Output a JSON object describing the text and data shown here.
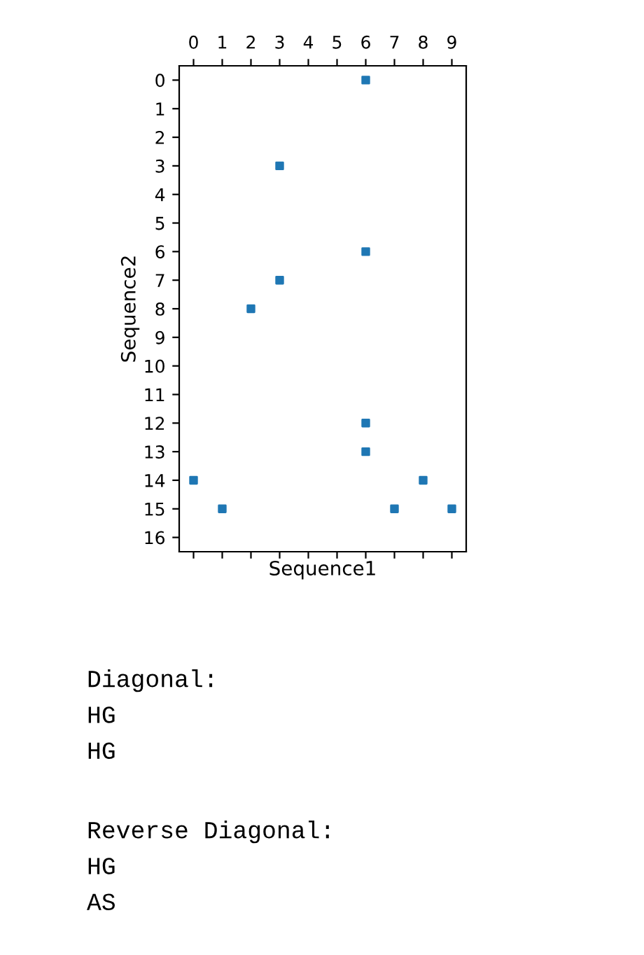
{
  "chart_data": {
    "type": "scatter",
    "xlabel": "Sequence1",
    "ylabel": "Sequence2",
    "x": [
      6,
      3,
      6,
      3,
      2,
      6,
      6,
      0,
      8,
      1,
      7,
      9
    ],
    "series": [
      {
        "color": "#1f77b4",
        "values": [
          0,
          3,
          6,
          7,
          8,
          12,
          13,
          14,
          14,
          15,
          15,
          15
        ]
      }
    ],
    "marker": "square",
    "grid": false,
    "legend": false,
    "xlim": [
      -0.5,
      9.5
    ],
    "xticks": [
      0,
      1,
      2,
      3,
      4,
      5,
      6,
      7,
      8,
      9
    ],
    "ylim": [
      16.5,
      -0.5
    ],
    "yticks": [
      0,
      1,
      2,
      3,
      4,
      5,
      6,
      7,
      8,
      9,
      10,
      11,
      12,
      13,
      14,
      15,
      16
    ],
    "annotations": [
      "Diagonal:\nHG\nHG",
      "Reverse Diagonal:\nHG\nAS"
    ]
  }
}
